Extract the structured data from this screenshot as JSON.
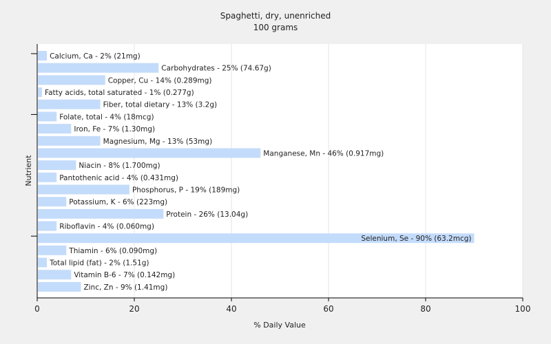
{
  "chart_data": {
    "type": "bar",
    "orientation": "horizontal",
    "title": "Spaghetti, dry, unenriched",
    "subtitle": "100 grams",
    "xlabel": "% Daily Value",
    "ylabel": "Nutrient",
    "xlim": [
      0,
      100
    ],
    "xticks": [
      0,
      20,
      40,
      60,
      80,
      100
    ],
    "grid": true,
    "bar_color": "#c4dcfb",
    "categories": [
      "Calcium, Ca",
      "Carbohydrates",
      "Copper, Cu",
      "Fatty acids, total saturated",
      "Fiber, total dietary",
      "Folate, total",
      "Iron, Fe",
      "Magnesium, Mg",
      "Manganese, Mn",
      "Niacin",
      "Pantothenic acid",
      "Phosphorus, P",
      "Potassium, K",
      "Protein",
      "Riboflavin",
      "Selenium, Se",
      "Thiamin",
      "Total lipid (fat)",
      "Vitamin B-6",
      "Zinc, Zn"
    ],
    "values": [
      2,
      25,
      14,
      1,
      13,
      4,
      7,
      13,
      46,
      8,
      4,
      19,
      6,
      26,
      4,
      90,
      6,
      2,
      7,
      9
    ],
    "amounts": [
      "21mg",
      "74.67g",
      "0.289mg",
      "0.277g",
      "3.2g",
      "18mcg",
      "1.30mg",
      "53mg",
      "0.917mg",
      "1.700mg",
      "0.431mg",
      "189mg",
      "223mg",
      "13.04g",
      "0.060mg",
      "63.2mcg",
      "0.090mg",
      "1.51g",
      "0.142mg",
      "1.41mg"
    ],
    "labels": [
      "Calcium, Ca - 2% (21mg)",
      "Carbohydrates - 25% (74.67g)",
      "Copper, Cu - 14% (0.289mg)",
      "Fatty acids, total saturated - 1% (0.277g)",
      "Fiber, total dietary - 13% (3.2g)",
      "Folate, total - 4% (18mcg)",
      "Iron, Fe - 7% (1.30mg)",
      "Magnesium, Mg - 13% (53mg)",
      "Manganese, Mn - 46% (0.917mg)",
      "Niacin - 8% (1.700mg)",
      "Pantothenic acid - 4% (0.431mg)",
      "Phosphorus, P - 19% (189mg)",
      "Potassium, K - 6% (223mg)",
      "Protein - 26% (13.04g)",
      "Riboflavin - 4% (0.060mg)",
      "Selenium, Se - 90% (63.2mcg)",
      "Thiamin - 6% (0.090mg)",
      "Total lipid (fat) - 2% (1.51g)",
      "Vitamin B-6 - 7% (0.142mg)",
      "Zinc, Zn - 9% (1.41mg)"
    ]
  }
}
